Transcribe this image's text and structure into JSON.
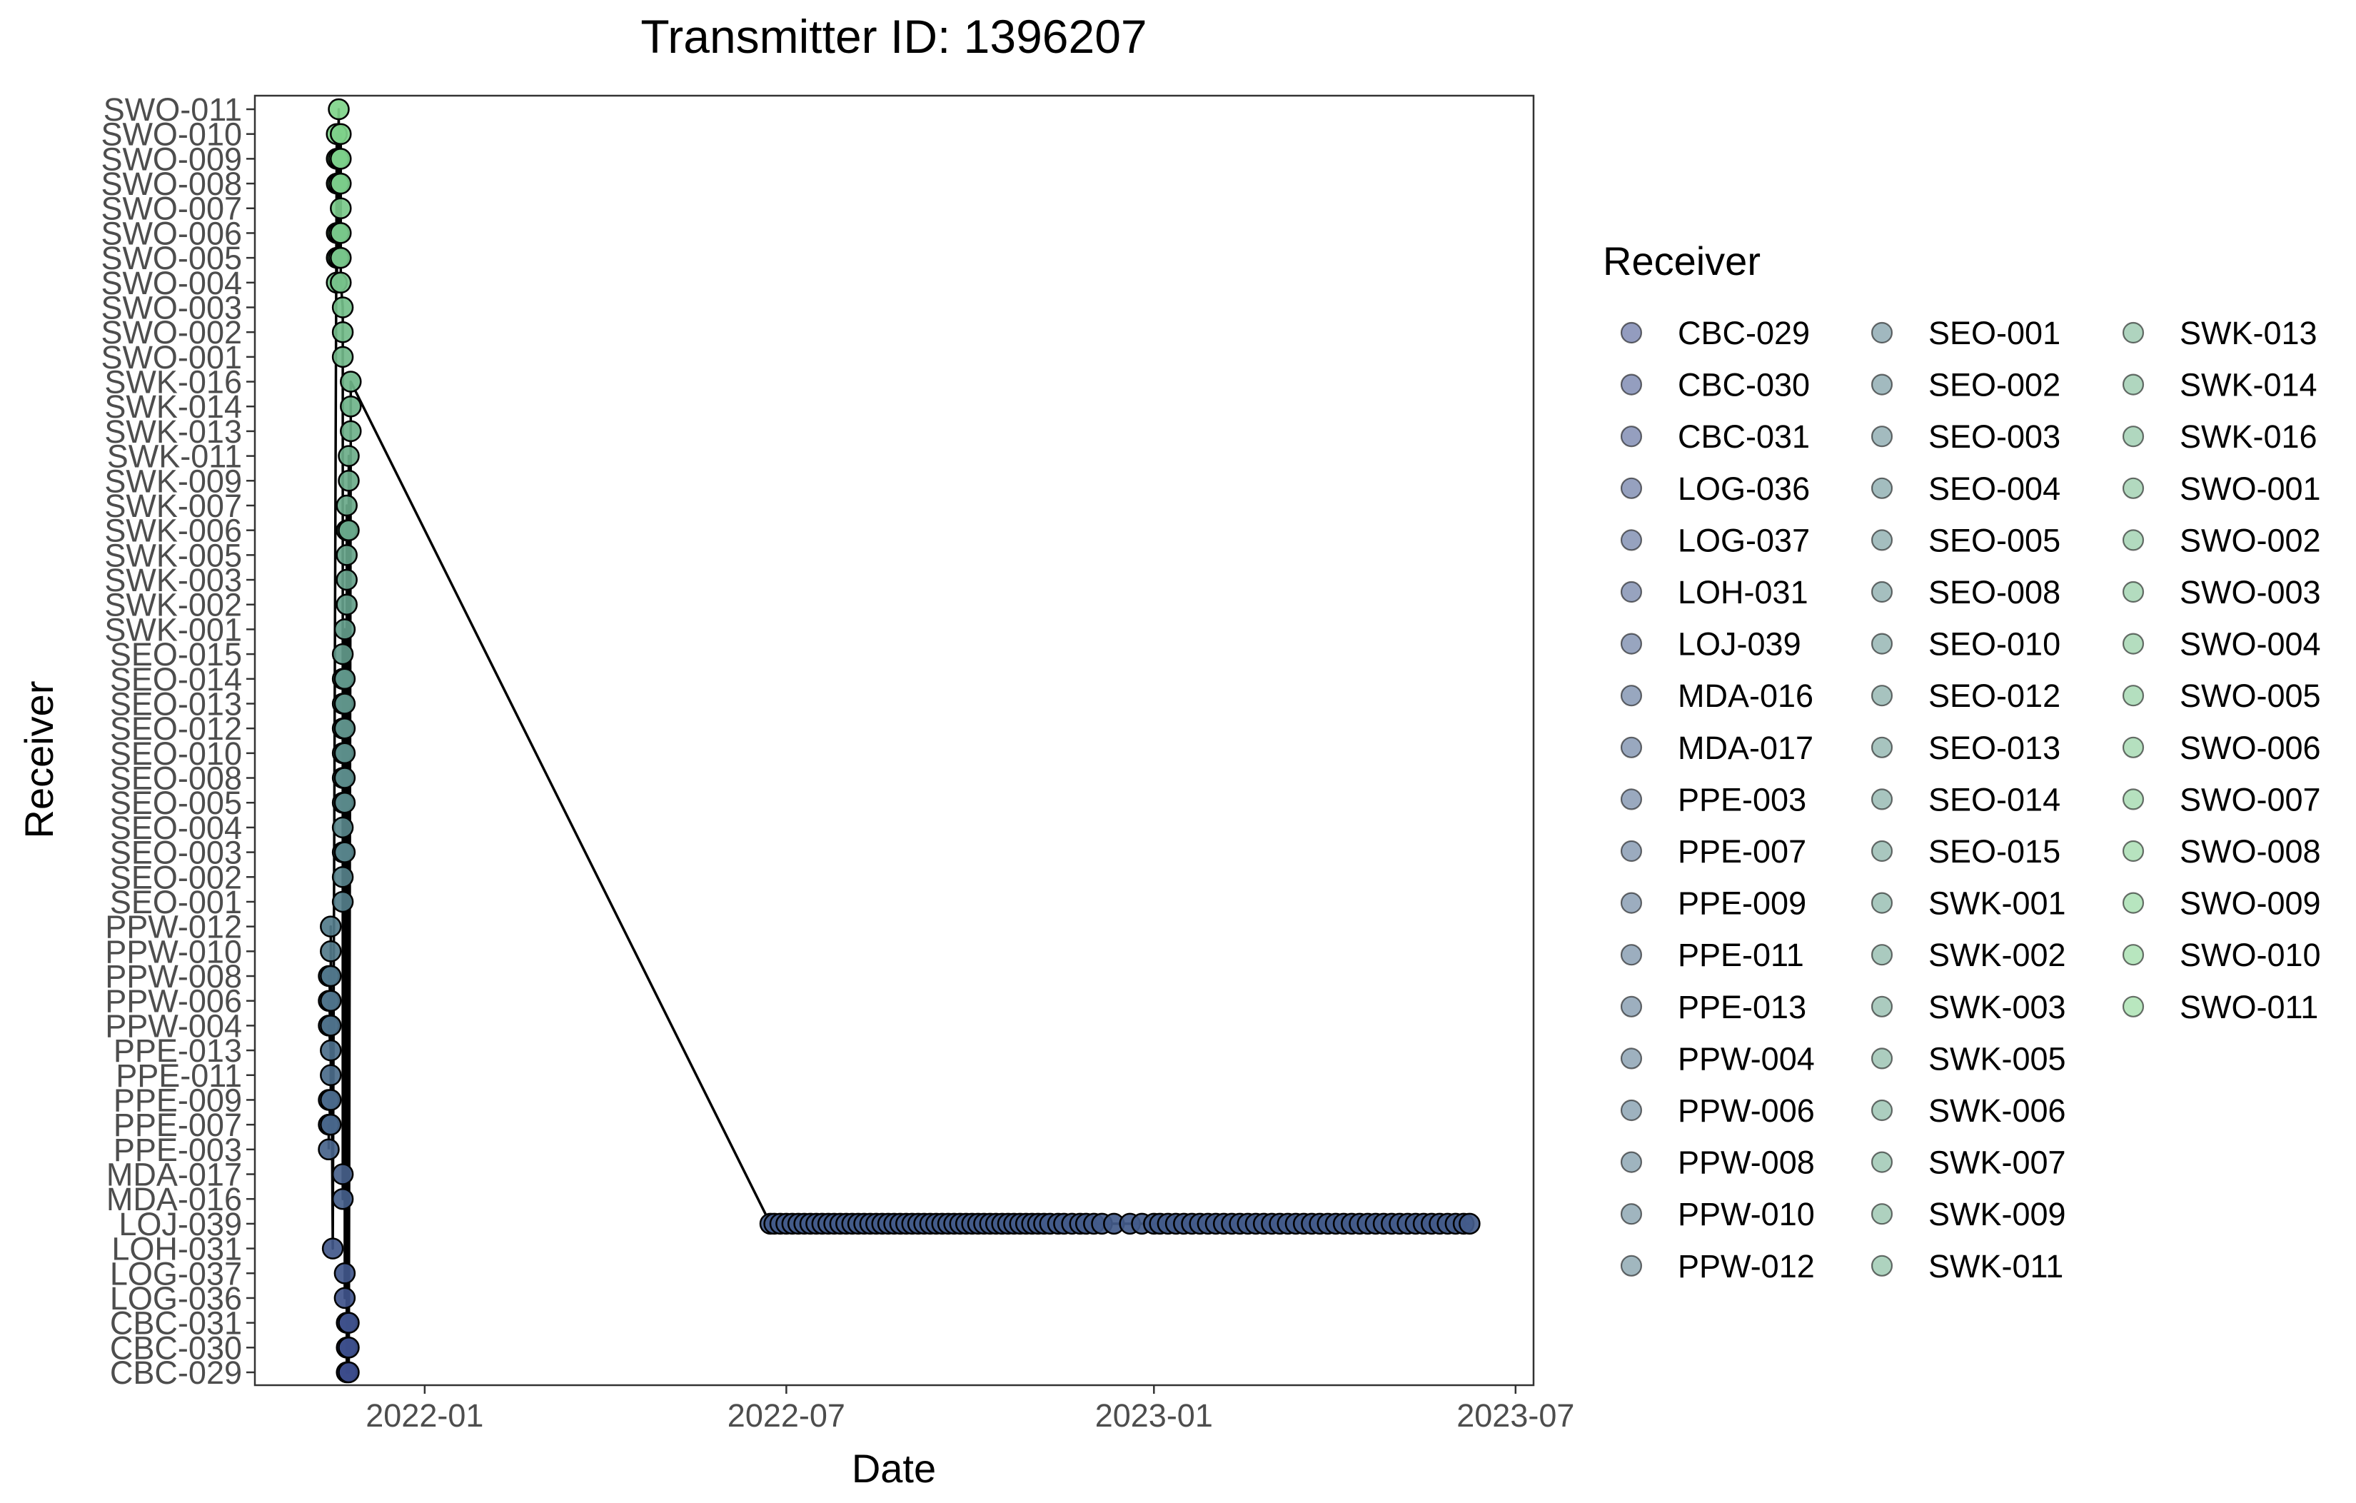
{
  "chart_data": {
    "type": "scatter",
    "title": "Transmitter ID: 1396207",
    "xlabel": "Date",
    "ylabel": "Receiver",
    "xlim": [
      "2021-10-08",
      "2023-07-10"
    ],
    "x_ticks": [
      "2022-01",
      "2022-07",
      "2023-01",
      "2023-07"
    ],
    "grid": false,
    "legend": {
      "title": "Receiver",
      "placement": "right"
    },
    "colors": {
      "line": "#000000",
      "point_stroke": "#000000",
      "palette_start": "#3b4b8a",
      "palette_end": "#7fd48a"
    },
    "categories": [
      "CBC-029",
      "CBC-030",
      "CBC-031",
      "LOG-036",
      "LOG-037",
      "LOH-031",
      "LOJ-039",
      "MDA-016",
      "MDA-017",
      "PPE-003",
      "PPE-007",
      "PPE-009",
      "PPE-011",
      "PPE-013",
      "PPW-004",
      "PPW-006",
      "PPW-008",
      "PPW-010",
      "PPW-012",
      "SEO-001",
      "SEO-002",
      "SEO-003",
      "SEO-004",
      "SEO-005",
      "SEO-008",
      "SEO-010",
      "SEO-012",
      "SEO-013",
      "SEO-014",
      "SEO-015",
      "SWK-001",
      "SWK-002",
      "SWK-003",
      "SWK-005",
      "SWK-006",
      "SWK-007",
      "SWK-009",
      "SWK-011",
      "SWK-013",
      "SWK-014",
      "SWK-016",
      "SWO-001",
      "SWO-002",
      "SWO-003",
      "SWO-004",
      "SWO-005",
      "SWO-006",
      "SWO-007",
      "SWO-008",
      "SWO-009",
      "SWO-010",
      "SWO-011"
    ],
    "series": [
      {
        "points": [
          {
            "x": "2021-11-14",
            "y": "PPE-003"
          },
          {
            "x": "2021-11-14",
            "y": "PPE-007"
          },
          {
            "x": "2021-11-15",
            "y": "PPE-007"
          },
          {
            "x": "2021-11-14",
            "y": "PPE-009"
          },
          {
            "x": "2021-11-15",
            "y": "PPE-009"
          },
          {
            "x": "2021-11-15",
            "y": "PPE-011"
          },
          {
            "x": "2021-11-15",
            "y": "PPE-013"
          },
          {
            "x": "2021-11-14",
            "y": "PPW-004"
          },
          {
            "x": "2021-11-15",
            "y": "PPW-004"
          },
          {
            "x": "2021-11-14",
            "y": "PPW-006"
          },
          {
            "x": "2021-11-15",
            "y": "PPW-006"
          },
          {
            "x": "2021-11-14",
            "y": "PPW-008"
          },
          {
            "x": "2021-11-15",
            "y": "PPW-008"
          },
          {
            "x": "2021-11-15",
            "y": "PPW-010"
          },
          {
            "x": "2021-11-15",
            "y": "PPW-012"
          },
          {
            "x": "2021-11-16",
            "y": "LOH-031"
          },
          {
            "x": "2021-11-18",
            "y": "SWO-010"
          },
          {
            "x": "2021-11-18",
            "y": "SWO-009"
          },
          {
            "x": "2021-11-18",
            "y": "SWO-008"
          },
          {
            "x": "2021-11-18",
            "y": "SWO-006"
          },
          {
            "x": "2021-11-18",
            "y": "SWO-005"
          },
          {
            "x": "2021-11-18",
            "y": "SWO-004"
          },
          {
            "x": "2021-11-19",
            "y": "SWO-011"
          },
          {
            "x": "2021-11-19",
            "y": "SWO-009"
          },
          {
            "x": "2021-11-19",
            "y": "SWO-008"
          },
          {
            "x": "2021-11-19",
            "y": "SWO-006"
          },
          {
            "x": "2021-11-19",
            "y": "SWO-005"
          },
          {
            "x": "2021-11-20",
            "y": "SWO-010"
          },
          {
            "x": "2021-11-20",
            "y": "SWO-009"
          },
          {
            "x": "2021-11-20",
            "y": "SWO-008"
          },
          {
            "x": "2021-11-20",
            "y": "SWO-007"
          },
          {
            "x": "2021-11-20",
            "y": "SWO-006"
          },
          {
            "x": "2021-11-20",
            "y": "SWO-005"
          },
          {
            "x": "2021-11-20",
            "y": "SWO-004"
          },
          {
            "x": "2021-11-21",
            "y": "SWO-003"
          },
          {
            "x": "2021-11-21",
            "y": "SWO-002"
          },
          {
            "x": "2021-11-21",
            "y": "SWO-001"
          },
          {
            "x": "2021-11-21",
            "y": "SEO-001"
          },
          {
            "x": "2021-11-21",
            "y": "SEO-002"
          },
          {
            "x": "2021-11-21",
            "y": "SEO-003"
          },
          {
            "x": "2021-11-21",
            "y": "SEO-004"
          },
          {
            "x": "2021-11-21",
            "y": "SEO-005"
          },
          {
            "x": "2021-11-21",
            "y": "SEO-008"
          },
          {
            "x": "2021-11-21",
            "y": "SEO-010"
          },
          {
            "x": "2021-11-21",
            "y": "SEO-012"
          },
          {
            "x": "2021-11-21",
            "y": "SEO-013"
          },
          {
            "x": "2021-11-21",
            "y": "SEO-014"
          },
          {
            "x": "2021-11-21",
            "y": "SEO-015"
          },
          {
            "x": "2021-11-21",
            "y": "MDA-016"
          },
          {
            "x": "2021-11-21",
            "y": "MDA-017"
          },
          {
            "x": "2021-11-22",
            "y": "SEO-003"
          },
          {
            "x": "2021-11-22",
            "y": "SEO-005"
          },
          {
            "x": "2021-11-22",
            "y": "SEO-008"
          },
          {
            "x": "2021-11-22",
            "y": "SEO-010"
          },
          {
            "x": "2021-11-22",
            "y": "SEO-012"
          },
          {
            "x": "2021-11-22",
            "y": "SEO-013"
          },
          {
            "x": "2021-11-22",
            "y": "SEO-014"
          },
          {
            "x": "2021-11-22",
            "y": "SWK-001"
          },
          {
            "x": "2021-11-22",
            "y": "LOG-037"
          },
          {
            "x": "2021-11-22",
            "y": "LOG-036"
          },
          {
            "x": "2021-11-23",
            "y": "SWK-002"
          },
          {
            "x": "2021-11-23",
            "y": "SWK-003"
          },
          {
            "x": "2021-11-23",
            "y": "SWK-005"
          },
          {
            "x": "2021-11-23",
            "y": "SWK-006"
          },
          {
            "x": "2021-11-23",
            "y": "SWK-007"
          },
          {
            "x": "2021-11-23",
            "y": "CBC-031"
          },
          {
            "x": "2021-11-23",
            "y": "CBC-030"
          },
          {
            "x": "2021-11-23",
            "y": "CBC-029"
          },
          {
            "x": "2021-11-24",
            "y": "SWK-006"
          },
          {
            "x": "2021-11-24",
            "y": "SWK-009"
          },
          {
            "x": "2021-11-24",
            "y": "SWK-011"
          },
          {
            "x": "2021-11-24",
            "y": "CBC-031"
          },
          {
            "x": "2021-11-24",
            "y": "CBC-030"
          },
          {
            "x": "2021-11-24",
            "y": "CBC-029"
          },
          {
            "x": "2021-11-25",
            "y": "SWK-013"
          },
          {
            "x": "2021-11-25",
            "y": "SWK-014"
          },
          {
            "x": "2021-11-25",
            "y": "SWK-016"
          },
          {
            "x": "2022-06-23",
            "y": "LOJ-039"
          },
          {
            "x": "2022-06-25",
            "y": "LOJ-039"
          },
          {
            "x": "2022-06-28",
            "y": "LOJ-039"
          },
          {
            "x": "2022-07-01",
            "y": "LOJ-039"
          },
          {
            "x": "2022-07-04",
            "y": "LOJ-039"
          },
          {
            "x": "2022-07-07",
            "y": "LOJ-039"
          },
          {
            "x": "2022-07-10",
            "y": "LOJ-039"
          },
          {
            "x": "2022-07-13",
            "y": "LOJ-039"
          },
          {
            "x": "2022-07-16",
            "y": "LOJ-039"
          },
          {
            "x": "2022-07-19",
            "y": "LOJ-039"
          },
          {
            "x": "2022-07-22",
            "y": "LOJ-039"
          },
          {
            "x": "2022-07-25",
            "y": "LOJ-039"
          },
          {
            "x": "2022-07-28",
            "y": "LOJ-039"
          },
          {
            "x": "2022-07-31",
            "y": "LOJ-039"
          },
          {
            "x": "2022-08-03",
            "y": "LOJ-039"
          },
          {
            "x": "2022-08-06",
            "y": "LOJ-039"
          },
          {
            "x": "2022-08-09",
            "y": "LOJ-039"
          },
          {
            "x": "2022-08-12",
            "y": "LOJ-039"
          },
          {
            "x": "2022-08-15",
            "y": "LOJ-039"
          },
          {
            "x": "2022-08-18",
            "y": "LOJ-039"
          },
          {
            "x": "2022-08-21",
            "y": "LOJ-039"
          },
          {
            "x": "2022-08-24",
            "y": "LOJ-039"
          },
          {
            "x": "2022-08-27",
            "y": "LOJ-039"
          },
          {
            "x": "2022-08-30",
            "y": "LOJ-039"
          },
          {
            "x": "2022-09-02",
            "y": "LOJ-039"
          },
          {
            "x": "2022-09-05",
            "y": "LOJ-039"
          },
          {
            "x": "2022-09-08",
            "y": "LOJ-039"
          },
          {
            "x": "2022-09-11",
            "y": "LOJ-039"
          },
          {
            "x": "2022-09-14",
            "y": "LOJ-039"
          },
          {
            "x": "2022-09-17",
            "y": "LOJ-039"
          },
          {
            "x": "2022-09-20",
            "y": "LOJ-039"
          },
          {
            "x": "2022-09-23",
            "y": "LOJ-039"
          },
          {
            "x": "2022-09-26",
            "y": "LOJ-039"
          },
          {
            "x": "2022-09-29",
            "y": "LOJ-039"
          },
          {
            "x": "2022-10-02",
            "y": "LOJ-039"
          },
          {
            "x": "2022-10-05",
            "y": "LOJ-039"
          },
          {
            "x": "2022-10-08",
            "y": "LOJ-039"
          },
          {
            "x": "2022-10-11",
            "y": "LOJ-039"
          },
          {
            "x": "2022-10-14",
            "y": "LOJ-039"
          },
          {
            "x": "2022-10-17",
            "y": "LOJ-039"
          },
          {
            "x": "2022-10-20",
            "y": "LOJ-039"
          },
          {
            "x": "2022-10-23",
            "y": "LOJ-039"
          },
          {
            "x": "2022-10-26",
            "y": "LOJ-039"
          },
          {
            "x": "2022-10-29",
            "y": "LOJ-039"
          },
          {
            "x": "2022-11-01",
            "y": "LOJ-039"
          },
          {
            "x": "2022-11-04",
            "y": "LOJ-039"
          },
          {
            "x": "2022-11-07",
            "y": "LOJ-039"
          },
          {
            "x": "2022-11-10",
            "y": "LOJ-039"
          },
          {
            "x": "2022-11-14",
            "y": "LOJ-039"
          },
          {
            "x": "2022-11-17",
            "y": "LOJ-039"
          },
          {
            "x": "2022-11-21",
            "y": "LOJ-039"
          },
          {
            "x": "2022-11-25",
            "y": "LOJ-039"
          },
          {
            "x": "2022-11-28",
            "y": "LOJ-039"
          },
          {
            "x": "2022-12-02",
            "y": "LOJ-039"
          },
          {
            "x": "2022-12-06",
            "y": "LOJ-039"
          },
          {
            "x": "2022-12-12",
            "y": "LOJ-039"
          },
          {
            "x": "2022-12-20",
            "y": "LOJ-039"
          },
          {
            "x": "2022-12-26",
            "y": "LOJ-039"
          },
          {
            "x": "2023-01-01",
            "y": "LOJ-039"
          },
          {
            "x": "2023-01-04",
            "y": "LOJ-039"
          },
          {
            "x": "2023-01-08",
            "y": "LOJ-039"
          },
          {
            "x": "2023-01-12",
            "y": "LOJ-039"
          },
          {
            "x": "2023-01-16",
            "y": "LOJ-039"
          },
          {
            "x": "2023-01-20",
            "y": "LOJ-039"
          },
          {
            "x": "2023-01-24",
            "y": "LOJ-039"
          },
          {
            "x": "2023-01-28",
            "y": "LOJ-039"
          },
          {
            "x": "2023-02-01",
            "y": "LOJ-039"
          },
          {
            "x": "2023-02-05",
            "y": "LOJ-039"
          },
          {
            "x": "2023-02-09",
            "y": "LOJ-039"
          },
          {
            "x": "2023-02-13",
            "y": "LOJ-039"
          },
          {
            "x": "2023-02-17",
            "y": "LOJ-039"
          },
          {
            "x": "2023-02-21",
            "y": "LOJ-039"
          },
          {
            "x": "2023-02-25",
            "y": "LOJ-039"
          },
          {
            "x": "2023-03-01",
            "y": "LOJ-039"
          },
          {
            "x": "2023-03-05",
            "y": "LOJ-039"
          },
          {
            "x": "2023-03-09",
            "y": "LOJ-039"
          },
          {
            "x": "2023-03-13",
            "y": "LOJ-039"
          },
          {
            "x": "2023-03-17",
            "y": "LOJ-039"
          },
          {
            "x": "2023-03-21",
            "y": "LOJ-039"
          },
          {
            "x": "2023-03-25",
            "y": "LOJ-039"
          },
          {
            "x": "2023-03-29",
            "y": "LOJ-039"
          },
          {
            "x": "2023-04-02",
            "y": "LOJ-039"
          },
          {
            "x": "2023-04-06",
            "y": "LOJ-039"
          },
          {
            "x": "2023-04-10",
            "y": "LOJ-039"
          },
          {
            "x": "2023-04-14",
            "y": "LOJ-039"
          },
          {
            "x": "2023-04-18",
            "y": "LOJ-039"
          },
          {
            "x": "2023-04-22",
            "y": "LOJ-039"
          },
          {
            "x": "2023-04-26",
            "y": "LOJ-039"
          },
          {
            "x": "2023-04-30",
            "y": "LOJ-039"
          },
          {
            "x": "2023-05-04",
            "y": "LOJ-039"
          },
          {
            "x": "2023-05-08",
            "y": "LOJ-039"
          },
          {
            "x": "2023-05-12",
            "y": "LOJ-039"
          },
          {
            "x": "2023-05-16",
            "y": "LOJ-039"
          },
          {
            "x": "2023-05-20",
            "y": "LOJ-039"
          },
          {
            "x": "2023-05-24",
            "y": "LOJ-039"
          },
          {
            "x": "2023-05-28",
            "y": "LOJ-039"
          },
          {
            "x": "2023-06-01",
            "y": "LOJ-039"
          },
          {
            "x": "2023-06-05",
            "y": "LOJ-039"
          },
          {
            "x": "2023-06-08",
            "y": "LOJ-039"
          }
        ]
      }
    ]
  }
}
